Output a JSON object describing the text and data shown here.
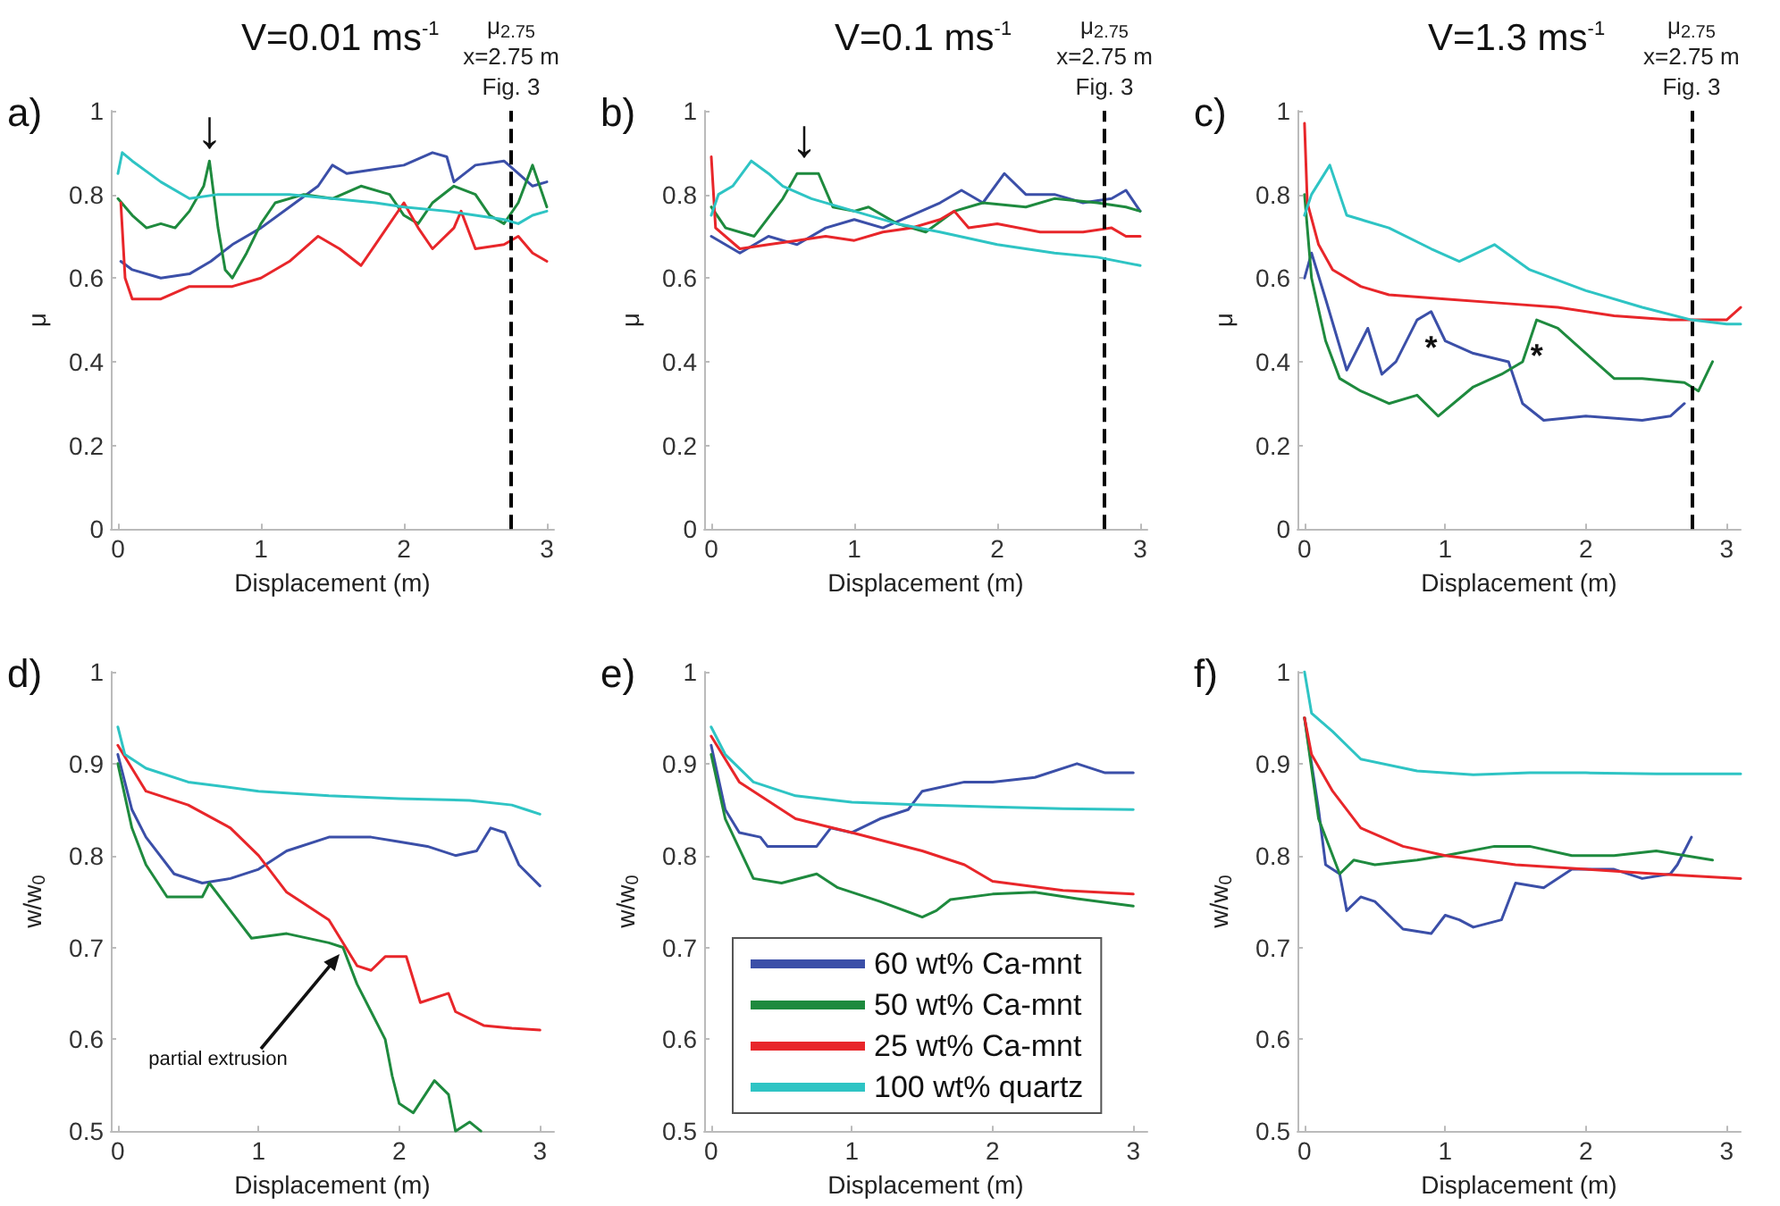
{
  "chart_data": [
    {
      "type": "line",
      "title": "V=0.01 ms$^{-1}$",
      "xlabel": "Displacement (m)",
      "ylabel": "μ",
      "xlim": [
        -0.05,
        3.05
      ],
      "ylim": [
        0,
        1
      ],
      "xticks": [
        0,
        1,
        2,
        3
      ],
      "yticks": [
        0,
        0.2,
        0.4,
        0.6,
        0.8,
        1
      ],
      "marker": "none",
      "line_style": "solid",
      "annotations": [
        "a)",
        {
          "text": "↓",
          "x": 0.64,
          "y": 0.88
        }
      ],
      "ref_lines": [
        {
          "axis": "x",
          "value": 2.75,
          "label": "μ$_{2.75}$\nx=2.75 m\nFig. 3",
          "color": "#000000",
          "line_style": "dashed"
        }
      ],
      "series": [
        {
          "color": "#3b4fa8",
          "x": [
            0.02,
            0.1,
            0.3,
            0.5,
            0.65,
            0.8,
            1.0,
            1.2,
            1.4,
            1.5,
            1.6,
            1.8,
            2.0,
            2.2,
            2.3,
            2.35,
            2.5,
            2.7,
            2.8,
            2.9,
            3.0
          ],
          "values": [
            0.64,
            0.62,
            0.6,
            0.61,
            0.64,
            0.68,
            0.72,
            0.77,
            0.82,
            0.87,
            0.85,
            0.86,
            0.87,
            0.9,
            0.89,
            0.83,
            0.87,
            0.88,
            0.85,
            0.82,
            0.83
          ]
        },
        {
          "color": "#1e8a3e",
          "x": [
            0,
            0.1,
            0.2,
            0.3,
            0.4,
            0.5,
            0.6,
            0.64,
            0.7,
            0.75,
            0.8,
            0.9,
            1.0,
            1.1,
            1.3,
            1.5,
            1.7,
            1.9,
            2.0,
            2.1,
            2.2,
            2.35,
            2.5,
            2.6,
            2.7,
            2.8,
            2.9,
            3.0
          ],
          "values": [
            0.79,
            0.75,
            0.72,
            0.73,
            0.72,
            0.76,
            0.82,
            0.88,
            0.72,
            0.62,
            0.6,
            0.66,
            0.73,
            0.78,
            0.8,
            0.79,
            0.82,
            0.8,
            0.75,
            0.73,
            0.78,
            0.82,
            0.8,
            0.75,
            0.73,
            0.78,
            0.87,
            0.77
          ]
        },
        {
          "color": "#e8262a",
          "x": [
            0.02,
            0.05,
            0.1,
            0.3,
            0.5,
            0.8,
            1.0,
            1.2,
            1.4,
            1.55,
            1.7,
            1.8,
            2.0,
            2.1,
            2.2,
            2.35,
            2.4,
            2.5,
            2.7,
            2.8,
            2.9,
            3.0
          ],
          "values": [
            0.78,
            0.6,
            0.55,
            0.55,
            0.58,
            0.58,
            0.6,
            0.64,
            0.7,
            0.67,
            0.63,
            0.68,
            0.78,
            0.72,
            0.67,
            0.72,
            0.76,
            0.67,
            0.68,
            0.7,
            0.66,
            0.64
          ]
        },
        {
          "color": "#2ec4c4",
          "x": [
            0,
            0.03,
            0.1,
            0.3,
            0.5,
            0.7,
            1.0,
            1.2,
            1.5,
            1.8,
            2.0,
            2.3,
            2.5,
            2.7,
            2.8,
            2.9,
            3.0
          ],
          "values": [
            0.85,
            0.9,
            0.88,
            0.83,
            0.79,
            0.8,
            0.8,
            0.8,
            0.79,
            0.78,
            0.77,
            0.76,
            0.75,
            0.74,
            0.73,
            0.75,
            0.76
          ]
        }
      ]
    },
    {
      "type": "line",
      "title": "V=0.1 ms$^{-1}$",
      "xlabel": "Displacement (m)",
      "ylabel": "μ",
      "xlim": [
        -0.05,
        3.05
      ],
      "ylim": [
        0,
        1
      ],
      "xticks": [
        0,
        1,
        2,
        3
      ],
      "yticks": [
        0,
        0.2,
        0.4,
        0.6,
        0.8,
        1
      ],
      "marker": "none",
      "line_style": "solid",
      "annotations": [
        "b)",
        {
          "text": "↓",
          "x": 0.65,
          "y": 0.86
        }
      ],
      "ref_lines": [
        {
          "axis": "x",
          "value": 2.75,
          "label": "μ$_{2.75}$\nx=2.75 m\nFig. 3",
          "color": "#000000",
          "line_style": "dashed"
        }
      ],
      "series": [
        {
          "color": "#3b4fa8",
          "x": [
            0,
            0.2,
            0.4,
            0.6,
            0.8,
            1.0,
            1.2,
            1.4,
            1.6,
            1.75,
            1.9,
            2.05,
            2.2,
            2.4,
            2.6,
            2.8,
            2.9,
            3.0
          ],
          "values": [
            0.7,
            0.66,
            0.7,
            0.68,
            0.72,
            0.74,
            0.72,
            0.75,
            0.78,
            0.81,
            0.78,
            0.85,
            0.8,
            0.8,
            0.78,
            0.79,
            0.81,
            0.76
          ]
        },
        {
          "color": "#1e8a3e",
          "x": [
            0,
            0.1,
            0.3,
            0.5,
            0.6,
            0.75,
            0.85,
            1.0,
            1.1,
            1.3,
            1.5,
            1.7,
            1.9,
            2.2,
            2.4,
            2.7,
            2.9,
            3.0
          ],
          "values": [
            0.77,
            0.72,
            0.7,
            0.79,
            0.85,
            0.85,
            0.77,
            0.76,
            0.77,
            0.73,
            0.71,
            0.76,
            0.78,
            0.77,
            0.79,
            0.78,
            0.77,
            0.76
          ]
        },
        {
          "color": "#e8262a",
          "x": [
            0,
            0.03,
            0.2,
            0.4,
            0.6,
            0.8,
            1.0,
            1.2,
            1.4,
            1.6,
            1.7,
            1.8,
            2.0,
            2.3,
            2.6,
            2.8,
            2.9,
            3.0
          ],
          "values": [
            0.89,
            0.72,
            0.67,
            0.68,
            0.69,
            0.7,
            0.69,
            0.71,
            0.72,
            0.74,
            0.76,
            0.72,
            0.73,
            0.71,
            0.71,
            0.72,
            0.7,
            0.7
          ]
        },
        {
          "color": "#2ec4c4",
          "x": [
            0,
            0.05,
            0.15,
            0.28,
            0.4,
            0.5,
            0.7,
            1.0,
            1.3,
            1.6,
            2.0,
            2.4,
            2.7,
            3.0
          ],
          "values": [
            0.75,
            0.8,
            0.82,
            0.88,
            0.85,
            0.82,
            0.79,
            0.76,
            0.73,
            0.71,
            0.68,
            0.66,
            0.65,
            0.63
          ]
        }
      ]
    },
    {
      "type": "line",
      "title": "V=1.3 ms$^{-1}$",
      "xlabel": "Displacement (m)",
      "ylabel": "μ",
      "xlim": [
        -0.05,
        3.1
      ],
      "ylim": [
        0,
        1
      ],
      "xticks": [
        0,
        1,
        2,
        3
      ],
      "yticks": [
        0,
        0.2,
        0.4,
        0.6,
        0.8,
        1
      ],
      "marker": "none",
      "line_style": "solid",
      "annotations": [
        "c)",
        {
          "text": "*",
          "x": 0.9,
          "y": 0.52
        },
        {
          "text": "*",
          "x": 1.65,
          "y": 0.5
        }
      ],
      "ref_lines": [
        {
          "axis": "x",
          "value": 2.75,
          "label": "μ$_{2.75}$\nx=2.75 m\nFig. 3",
          "color": "#000000",
          "line_style": "dashed"
        }
      ],
      "series": [
        {
          "color": "#3b4fa8",
          "x": [
            0,
            0.05,
            0.15,
            0.3,
            0.45,
            0.55,
            0.65,
            0.8,
            0.9,
            1.0,
            1.2,
            1.45,
            1.55,
            1.7,
            2.0,
            2.4,
            2.6,
            2.7
          ],
          "values": [
            0.6,
            0.66,
            0.55,
            0.38,
            0.48,
            0.37,
            0.4,
            0.5,
            0.52,
            0.45,
            0.42,
            0.4,
            0.3,
            0.26,
            0.27,
            0.26,
            0.27,
            0.3
          ]
        },
        {
          "color": "#1e8a3e",
          "x": [
            0,
            0.05,
            0.15,
            0.25,
            0.4,
            0.6,
            0.8,
            0.95,
            1.2,
            1.4,
            1.55,
            1.65,
            1.8,
            2.0,
            2.2,
            2.4,
            2.7,
            2.8,
            2.9
          ],
          "values": [
            0.8,
            0.6,
            0.45,
            0.36,
            0.33,
            0.3,
            0.32,
            0.27,
            0.34,
            0.37,
            0.4,
            0.5,
            0.48,
            0.42,
            0.36,
            0.36,
            0.35,
            0.33,
            0.4
          ]
        },
        {
          "color": "#e8262a",
          "x": [
            0,
            0.02,
            0.1,
            0.2,
            0.4,
            0.6,
            1.0,
            1.4,
            1.8,
            2.2,
            2.6,
            3.0,
            3.1
          ],
          "values": [
            0.97,
            0.78,
            0.68,
            0.62,
            0.58,
            0.56,
            0.55,
            0.54,
            0.53,
            0.51,
            0.5,
            0.5,
            0.53
          ]
        },
        {
          "color": "#2ec4c4",
          "x": [
            0,
            0.05,
            0.18,
            0.3,
            0.6,
            0.9,
            1.1,
            1.35,
            1.6,
            2.0,
            2.4,
            2.75,
            3.0,
            3.1
          ],
          "values": [
            0.75,
            0.8,
            0.87,
            0.75,
            0.72,
            0.67,
            0.64,
            0.68,
            0.62,
            0.57,
            0.53,
            0.5,
            0.49,
            0.49
          ]
        }
      ]
    },
    {
      "type": "line",
      "xlabel": "Displacement (m)",
      "ylabel": "w/w$_{0}$",
      "xlim": [
        -0.05,
        3.1
      ],
      "ylim": [
        0.5,
        1
      ],
      "xticks": [
        0,
        1,
        2,
        3
      ],
      "yticks": [
        0.5,
        0.6,
        0.7,
        0.8,
        0.9,
        1
      ],
      "marker": "none",
      "line_style": "solid",
      "annotations": [
        "d)",
        "partial extrusion"
      ],
      "series": [
        {
          "color": "#3b4fa8",
          "x": [
            0,
            0.1,
            0.2,
            0.4,
            0.6,
            0.8,
            1.0,
            1.2,
            1.5,
            1.8,
            2.0,
            2.2,
            2.4,
            2.55,
            2.65,
            2.75,
            2.85,
            3.0
          ],
          "values": [
            0.91,
            0.85,
            0.82,
            0.78,
            0.77,
            0.775,
            0.785,
            0.805,
            0.82,
            0.82,
            0.815,
            0.81,
            0.8,
            0.805,
            0.83,
            0.825,
            0.79,
            0.767
          ]
        },
        {
          "color": "#1e8a3e",
          "x": [
            0,
            0.1,
            0.2,
            0.35,
            0.6,
            0.65,
            0.8,
            0.95,
            1.2,
            1.5,
            1.6,
            1.7,
            1.8,
            1.9,
            1.95,
            2.0,
            2.1,
            2.25,
            2.35,
            2.4,
            2.5,
            2.58
          ],
          "values": [
            0.9,
            0.83,
            0.79,
            0.755,
            0.755,
            0.77,
            0.74,
            0.71,
            0.715,
            0.705,
            0.7,
            0.66,
            0.63,
            0.6,
            0.56,
            0.53,
            0.52,
            0.555,
            0.54,
            0.5,
            0.51,
            0.5
          ]
        },
        {
          "color": "#e8262a",
          "x": [
            0,
            0.2,
            0.5,
            0.8,
            1.0,
            1.2,
            1.5,
            1.7,
            1.8,
            1.9,
            2.05,
            2.15,
            2.35,
            2.4,
            2.6,
            2.8,
            3.0
          ],
          "values": [
            0.92,
            0.87,
            0.855,
            0.83,
            0.8,
            0.76,
            0.73,
            0.68,
            0.675,
            0.69,
            0.69,
            0.64,
            0.65,
            0.63,
            0.615,
            0.612,
            0.61
          ]
        },
        {
          "color": "#2ec4c4",
          "x": [
            0,
            0.05,
            0.2,
            0.5,
            1.0,
            1.5,
            2.0,
            2.5,
            2.8,
            2.9,
            3.0
          ],
          "values": [
            0.94,
            0.91,
            0.895,
            0.88,
            0.87,
            0.865,
            0.862,
            0.86,
            0.855,
            0.85,
            0.845
          ]
        }
      ]
    },
    {
      "type": "line",
      "xlabel": "Displacement (m)",
      "ylabel": "w/w$_{0}$",
      "xlim": [
        -0.05,
        3.1
      ],
      "ylim": [
        0.5,
        1
      ],
      "xticks": [
        0,
        1,
        2,
        3
      ],
      "yticks": [
        0.5,
        0.6,
        0.7,
        0.8,
        0.9,
        1
      ],
      "marker": "none",
      "line_style": "solid",
      "legend": "bottom",
      "annotations": [
        "e)"
      ],
      "series": [
        {
          "name": "60 wt% Ca-mnt",
          "color": "#3b4fa8",
          "x": [
            0,
            0.1,
            0.2,
            0.35,
            0.4,
            0.75,
            0.85,
            1.0,
            1.2,
            1.4,
            1.5,
            1.8,
            2.0,
            2.3,
            2.6,
            2.8,
            3.0
          ],
          "values": [
            0.92,
            0.85,
            0.825,
            0.82,
            0.81,
            0.81,
            0.83,
            0.825,
            0.84,
            0.85,
            0.87,
            0.88,
            0.88,
            0.885,
            0.9,
            0.89,
            0.89
          ]
        },
        {
          "name": "50 wt% Ca-mnt",
          "color": "#1e8a3e",
          "x": [
            0,
            0.1,
            0.3,
            0.5,
            0.75,
            0.9,
            1.2,
            1.5,
            1.6,
            1.7,
            2.0,
            2.3,
            2.6,
            3.0
          ],
          "values": [
            0.91,
            0.84,
            0.775,
            0.77,
            0.78,
            0.765,
            0.75,
            0.733,
            0.74,
            0.752,
            0.758,
            0.76,
            0.753,
            0.745
          ]
        },
        {
          "name": "25 wt% Ca-mnt",
          "color": "#e8262a",
          "x": [
            0,
            0.2,
            0.4,
            0.6,
            1.0,
            1.5,
            1.8,
            2.0,
            2.5,
            3.0
          ],
          "values": [
            0.93,
            0.88,
            0.86,
            0.84,
            0.825,
            0.805,
            0.79,
            0.772,
            0.762,
            0.758
          ]
        },
        {
          "name": "100 wt% quartz",
          "color": "#2ec4c4",
          "x": [
            0,
            0.1,
            0.3,
            0.6,
            1.0,
            1.5,
            2.0,
            2.5,
            3.0
          ],
          "values": [
            0.94,
            0.91,
            0.88,
            0.865,
            0.858,
            0.855,
            0.853,
            0.851,
            0.85
          ]
        }
      ]
    },
    {
      "type": "line",
      "xlabel": "Displacement (m)",
      "ylabel": "w/w$_{0}$",
      "xlim": [
        -0.05,
        3.1
      ],
      "ylim": [
        0.5,
        1
      ],
      "xticks": [
        0,
        1,
        2,
        3
      ],
      "yticks": [
        0.5,
        0.6,
        0.7,
        0.8,
        0.9,
        1
      ],
      "marker": "none",
      "line_style": "solid",
      "annotations": [
        "f)"
      ],
      "series": [
        {
          "color": "#3b4fa8",
          "x": [
            0,
            0.1,
            0.15,
            0.25,
            0.3,
            0.4,
            0.5,
            0.7,
            0.9,
            1.0,
            1.1,
            1.2,
            1.4,
            1.5,
            1.7,
            1.9,
            2.2,
            2.4,
            2.6,
            2.65,
            2.75
          ],
          "values": [
            0.95,
            0.85,
            0.79,
            0.78,
            0.74,
            0.755,
            0.75,
            0.72,
            0.715,
            0.735,
            0.73,
            0.722,
            0.73,
            0.77,
            0.765,
            0.785,
            0.785,
            0.775,
            0.78,
            0.79,
            0.82
          ]
        },
        {
          "color": "#1e8a3e",
          "x": [
            0,
            0.1,
            0.25,
            0.35,
            0.5,
            0.8,
            1.0,
            1.35,
            1.6,
            1.9,
            2.2,
            2.5,
            2.9
          ],
          "values": [
            0.95,
            0.84,
            0.78,
            0.795,
            0.79,
            0.795,
            0.8,
            0.81,
            0.81,
            0.8,
            0.8,
            0.805,
            0.795
          ]
        },
        {
          "color": "#e8262a",
          "x": [
            0,
            0.05,
            0.2,
            0.4,
            0.7,
            1.0,
            1.5,
            2.0,
            2.5,
            3.1
          ],
          "values": [
            0.95,
            0.91,
            0.87,
            0.83,
            0.81,
            0.8,
            0.79,
            0.785,
            0.78,
            0.775
          ]
        },
        {
          "color": "#2ec4c4",
          "x": [
            0,
            0.05,
            0.2,
            0.4,
            0.8,
            1.2,
            1.6,
            2.0,
            2.5,
            3.1
          ],
          "values": [
            1.0,
            0.955,
            0.935,
            0.905,
            0.892,
            0.888,
            0.89,
            0.89,
            0.889,
            0.889
          ]
        }
      ]
    }
  ]
}
